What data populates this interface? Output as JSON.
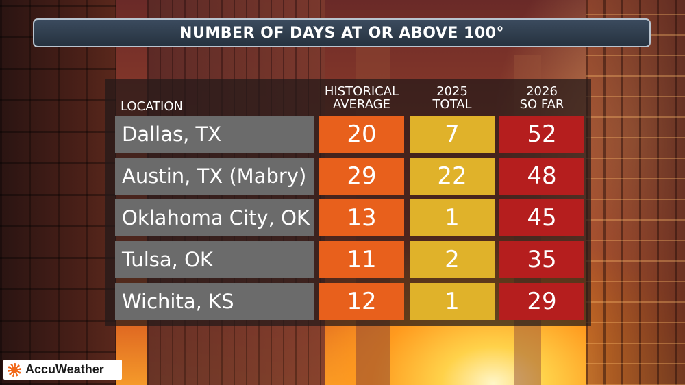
{
  "chart_data": {
    "type": "table",
    "title": "NUMBER OF DAYS AT OR ABOVE 100°",
    "columns": {
      "location": "LOCATION",
      "historical": [
        "HISTORICAL",
        "AVERAGE"
      ],
      "total2025": [
        "2025",
        "TOTAL"
      ],
      "sofar2026": [
        "2026",
        "SO FAR"
      ]
    },
    "rows": [
      {
        "location": "Dallas, TX",
        "historical": 20,
        "total2025": 7,
        "sofar2026": 52
      },
      {
        "location": "Austin, TX (Mabry)",
        "historical": 29,
        "total2025": 22,
        "sofar2026": 48
      },
      {
        "location": "Oklahoma City, OK",
        "historical": 13,
        "total2025": 1,
        "sofar2026": 45
      },
      {
        "location": "Tulsa, OK",
        "historical": 11,
        "total2025": 2,
        "sofar2026": 35
      },
      {
        "location": "Wichita, KS",
        "historical": 12,
        "total2025": 1,
        "sofar2026": 29
      }
    ],
    "colors": {
      "historical": "#e8601c",
      "total2025": "#e0b22a",
      "sofar2026": "#b51e1e",
      "location": "#6b6b6b"
    }
  },
  "brand": {
    "logo_text": "AccuWeather",
    "logo_icon": "sun-icon"
  }
}
